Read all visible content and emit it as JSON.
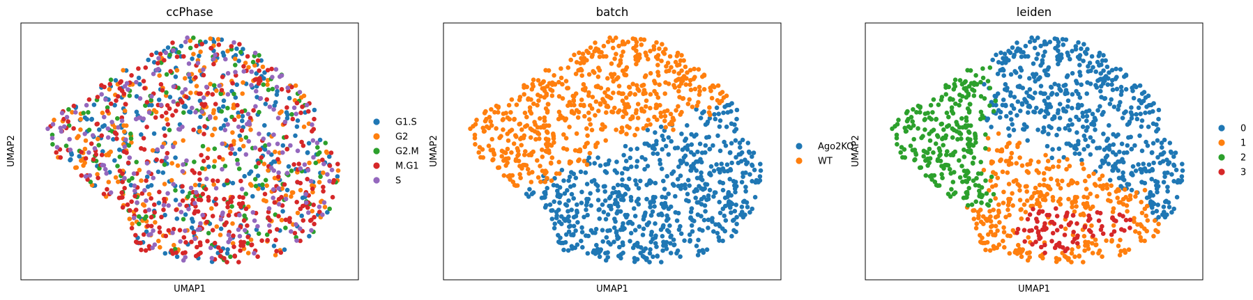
{
  "chart_data": [
    {
      "type": "scatter",
      "title": "ccPhase",
      "xlabel": "UMAP1",
      "ylabel": "UMAP2",
      "ticks": "none",
      "grid": false,
      "legend_position": "right",
      "series": [
        {
          "name": "G1.S",
          "color": "#1f77b4",
          "approx_count": 300
        },
        {
          "name": "G2",
          "color": "#ff7f0e",
          "approx_count": 260
        },
        {
          "name": "G2.M",
          "color": "#2ca02c",
          "approx_count": 180
        },
        {
          "name": "M.G1",
          "color": "#d62728",
          "approx_count": 290
        },
        {
          "name": "S",
          "color": "#9467bd",
          "approx_count": 250
        }
      ]
    },
    {
      "type": "scatter",
      "title": "batch",
      "xlabel": "UMAP1",
      "ylabel": "UMAP2",
      "ticks": "none",
      "grid": false,
      "legend_position": "right",
      "series": [
        {
          "name": "Ago2KO",
          "color": "#1f77b4",
          "region": "lower-right"
        },
        {
          "name": "WT",
          "color": "#ff7f0e",
          "region": "upper-left"
        }
      ]
    },
    {
      "type": "scatter",
      "title": "leiden",
      "xlabel": "UMAP1",
      "ylabel": "UMAP2",
      "ticks": "none",
      "grid": false,
      "legend_position": "right",
      "series": [
        {
          "name": "0",
          "color": "#1f77b4",
          "region": "top-right"
        },
        {
          "name": "1",
          "color": "#ff7f0e",
          "region": "bottom-center"
        },
        {
          "name": "2",
          "color": "#2ca02c",
          "region": "left"
        },
        {
          "name": "3",
          "color": "#d62728",
          "region": "bottom-center"
        }
      ]
    }
  ]
}
